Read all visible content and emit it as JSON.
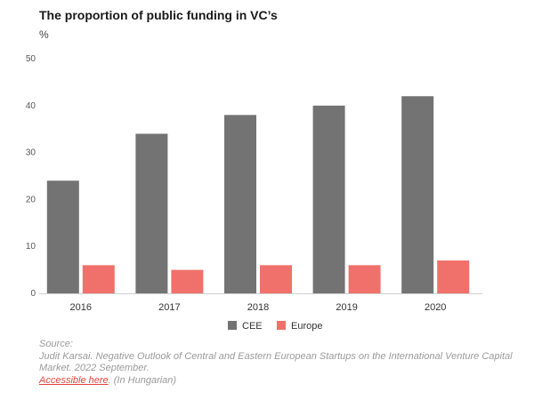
{
  "title": "The proportion of public funding  in VC’s",
  "unit": "%",
  "source": {
    "label": "Source:",
    "citation": "Judit Karsai. Negative Outlook of Central and Eastern European Startups on the International Venture Capital Market. 2022 September.",
    "link_text": "Accessible here",
    "link_suffix": ". (In Hungarian)"
  },
  "chart_data": {
    "type": "bar",
    "categories": [
      "2016",
      "2017",
      "2018",
      "2019",
      "2020"
    ],
    "series": [
      {
        "name": "CEE",
        "values": [
          24,
          34,
          38,
          40,
          42
        ],
        "color": "#737373"
      },
      {
        "name": "Europe",
        "values": [
          6,
          5,
          6,
          6,
          7
        ],
        "color": "#f0716b"
      }
    ],
    "ylim": [
      0,
      50
    ],
    "yticks": [
      0,
      10,
      20,
      30,
      40,
      50
    ],
    "grid": false,
    "legend_position": "bottom-center"
  }
}
